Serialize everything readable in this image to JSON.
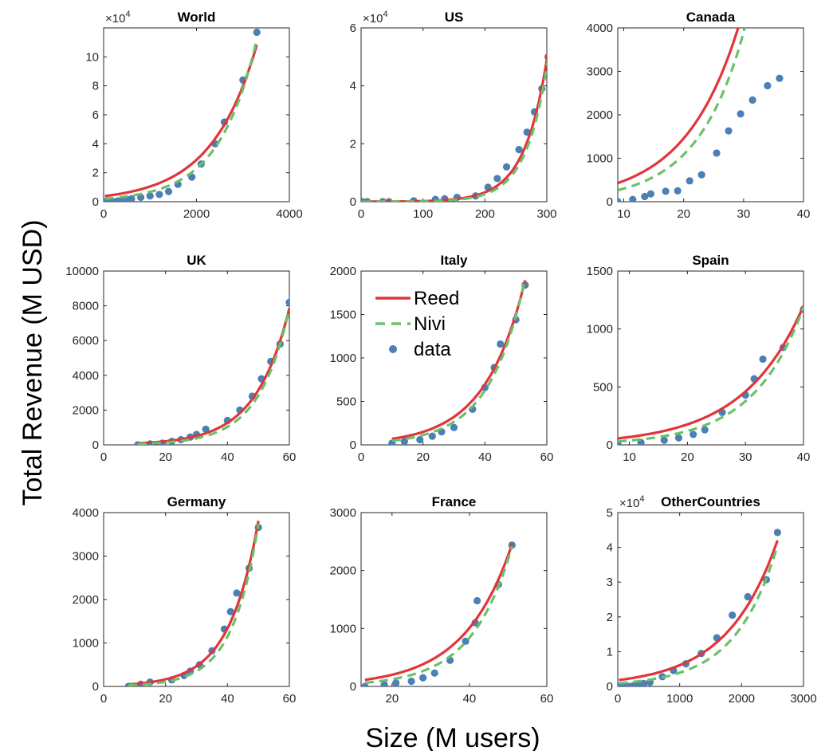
{
  "figure": {
    "ylabel": "Total Revenue (M USD)",
    "xlabel": "Size (M users)"
  },
  "legend": {
    "panel": 4,
    "entries": [
      {
        "label": "Reed",
        "style": "solid-line",
        "color": "#e0353a"
      },
      {
        "label": "Nivi",
        "style": "dashed-line",
        "color": "#6cc06a"
      },
      {
        "label": "data",
        "style": "marker",
        "color": "#4a80b4"
      }
    ]
  },
  "colors": {
    "reed": "#e0353a",
    "nivi": "#6cc06a",
    "data": "#4a80b4"
  },
  "chart_data": [
    {
      "type": "scatter",
      "title": "World",
      "multiplier": "×10^4",
      "xlim": [
        0,
        4000
      ],
      "ylim": [
        0,
        120000
      ],
      "xticks": [
        0,
        2000,
        4000
      ],
      "xtick_labels": [
        "0",
        "2000",
        "4000"
      ],
      "yticks": [
        0,
        20000,
        40000,
        60000,
        80000,
        100000
      ],
      "ytick_labels": [
        "0",
        "2",
        "4",
        "6",
        "8",
        "10"
      ],
      "data_x": [
        30,
        100,
        200,
        300,
        400,
        500,
        600,
        800,
        1000,
        1200,
        1400,
        1600,
        1900,
        2100,
        2400,
        2600,
        3000,
        3300
      ],
      "data_y": [
        0,
        0,
        0,
        500,
        1000,
        1500,
        2000,
        3000,
        4000,
        5000,
        7000,
        12000,
        17000,
        26000,
        40000,
        55000,
        84000,
        117000
      ],
      "reed": {
        "a": 3800,
        "b": 0.001015
      },
      "nivi": {
        "a": 2000,
        "b": 0.00122
      }
    },
    {
      "type": "scatter",
      "title": "US",
      "multiplier": "×10^4",
      "xlim": [
        0,
        300
      ],
      "ylim": [
        0,
        60000
      ],
      "xticks": [
        0,
        100,
        200,
        300
      ],
      "xtick_labels": [
        "0",
        "100",
        "200",
        "300"
      ],
      "yticks": [
        0,
        20000,
        40000,
        60000
      ],
      "ytick_labels": [
        "0",
        "2",
        "4",
        "6"
      ],
      "data_x": [
        2,
        10,
        35,
        45,
        85,
        120,
        135,
        155,
        185,
        205,
        220,
        235,
        255,
        268,
        280,
        292,
        302
      ],
      "data_y": [
        0,
        0,
        0,
        0,
        300,
        800,
        1000,
        1500,
        2000,
        5000,
        8000,
        12000,
        18000,
        24000,
        31000,
        39000,
        50000
      ],
      "reed": {
        "a": 14,
        "b": 0.0272
      },
      "nivi": {
        "a": 8,
        "b": 0.0289
      }
    },
    {
      "type": "scatter",
      "title": "Canada",
      "xlim": [
        9,
        40
      ],
      "ylim": [
        0,
        4000
      ],
      "xticks": [
        10,
        20,
        30,
        40
      ],
      "xtick_labels": [
        "10",
        "20",
        "30",
        "40"
      ],
      "yticks": [
        0,
        1000,
        2000,
        3000,
        4000
      ],
      "ytick_labels": [
        "0",
        "1000",
        "2000",
        "3000",
        "4000"
      ],
      "data_x": [
        9,
        11.5,
        13.5,
        14.5,
        17,
        19,
        21,
        23,
        25.5,
        27.5,
        29.5,
        31.5,
        34,
        36
      ],
      "data_y": [
        0,
        50,
        120,
        180,
        240,
        250,
        480,
        620,
        1120,
        1630,
        2020,
        2340,
        2670,
        2840
      ],
      "reed": {
        "a": 158,
        "b": 0.1111
      },
      "nivi": {
        "a": 84,
        "b": 0.1279
      }
    },
    {
      "type": "scatter",
      "title": "UK",
      "xlim": [
        0,
        60
      ],
      "ylim": [
        0,
        10000
      ],
      "xticks": [
        0,
        20,
        40,
        60
      ],
      "xtick_labels": [
        "0",
        "20",
        "40",
        "60"
      ],
      "yticks": [
        0,
        2000,
        4000,
        6000,
        8000,
        10000
      ],
      "ytick_labels": [
        "0",
        "2000",
        "4000",
        "6000",
        "8000",
        "10000"
      ],
      "data_x": [
        11,
        15,
        19,
        22,
        25,
        28,
        30,
        33,
        40,
        44,
        48,
        51,
        54,
        57,
        60
      ],
      "data_y": [
        0,
        50,
        100,
        200,
        300,
        450,
        600,
        900,
        1400,
        2000,
        2800,
        3800,
        4800,
        5800,
        8200
      ],
      "reed": {
        "a": 33,
        "b": 0.0912
      },
      "nivi": {
        "a": 18,
        "b": 0.1013
      }
    },
    {
      "type": "scatter",
      "title": "Italy",
      "xlim": [
        0,
        60
      ],
      "ylim": [
        0,
        2000
      ],
      "xticks": [
        0,
        20,
        40,
        60
      ],
      "xtick_labels": [
        "0",
        "20",
        "40",
        "60"
      ],
      "yticks": [
        0,
        500,
        1000,
        1500,
        2000
      ],
      "ytick_labels": [
        "0",
        "500",
        "1000",
        "1500",
        "2000"
      ],
      "data_x": [
        10,
        14,
        19,
        23,
        26,
        30,
        36,
        40,
        43,
        45,
        50,
        53
      ],
      "data_y": [
        20,
        40,
        60,
        100,
        150,
        200,
        410,
        660,
        890,
        1160,
        1440,
        1840
      ],
      "reed": {
        "a": 32,
        "b": 0.077
      },
      "nivi": {
        "a": 20,
        "b": 0.0861
      }
    },
    {
      "type": "scatter",
      "title": "Spain",
      "xlim": [
        8,
        40
      ],
      "ylim": [
        0,
        1500
      ],
      "xticks": [
        10,
        20,
        30,
        40
      ],
      "xtick_labels": [
        "10",
        "20",
        "30",
        "40"
      ],
      "yticks": [
        0,
        500,
        1000,
        1500
      ],
      "ytick_labels": [
        "0",
        "500",
        "1000",
        "1500"
      ],
      "data_x": [
        8,
        12,
        16,
        18.5,
        21,
        23,
        26,
        30,
        31.5,
        33,
        36.5,
        40
      ],
      "data_y": [
        10,
        20,
        40,
        60,
        90,
        130,
        280,
        430,
        570,
        740,
        840,
        1170
      ],
      "reed": {
        "a": 26,
        "b": 0.0958
      },
      "nivi": {
        "a": 12,
        "b": 0.1149
      }
    },
    {
      "type": "scatter",
      "title": "Germany",
      "xlim": [
        0,
        60
      ],
      "ylim": [
        0,
        4000
      ],
      "xticks": [
        0,
        20,
        40,
        60
      ],
      "xtick_labels": [
        "0",
        "20",
        "40",
        "60"
      ],
      "yticks": [
        0,
        1000,
        2000,
        3000,
        4000
      ],
      "ytick_labels": [
        "0",
        "1000",
        "2000",
        "3000",
        "4000"
      ],
      "data_x": [
        8,
        12,
        15,
        22,
        26,
        28,
        31,
        35,
        39,
        41,
        43,
        47,
        50
      ],
      "data_y": [
        0,
        50,
        100,
        150,
        250,
        350,
        500,
        820,
        1320,
        1720,
        2150,
        2720,
        3660
      ],
      "reed": {
        "a": 20,
        "b": 0.105
      },
      "nivi": {
        "a": 10,
        "b": 0.1185
      }
    },
    {
      "type": "scatter",
      "title": "France",
      "xlim": [
        12,
        60
      ],
      "ylim": [
        0,
        3000
      ],
      "xticks": [
        20,
        40,
        60
      ],
      "xtick_labels": [
        "20",
        "40",
        "60"
      ],
      "yticks": [
        0,
        1000,
        2000,
        3000
      ],
      "ytick_labels": [
        "0",
        "1000",
        "2000",
        "3000"
      ],
      "data_x": [
        13,
        18,
        21,
        25,
        28,
        31,
        35,
        39,
        41.5,
        42,
        47.5,
        51
      ],
      "data_y": [
        0,
        30,
        60,
        90,
        150,
        230,
        450,
        780,
        1100,
        1480,
        1760,
        2440
      ],
      "reed": {
        "a": 40,
        "b": 0.0807
      },
      "nivi": {
        "a": 18,
        "b": 0.0961
      }
    },
    {
      "type": "scatter",
      "title": "OtherCountries",
      "multiplier": "×10^4",
      "xlim": [
        0,
        3000
      ],
      "ylim": [
        0,
        50000
      ],
      "xticks": [
        0,
        1000,
        2000,
        3000
      ],
      "xtick_labels": [
        "0",
        "1000",
        "2000",
        "3000"
      ],
      "yticks": [
        0,
        10000,
        20000,
        30000,
        40000,
        50000
      ],
      "ytick_labels": [
        "0",
        "1",
        "2",
        "3",
        "4",
        "5"
      ],
      "data_x": [
        20,
        100,
        180,
        250,
        330,
        420,
        520,
        720,
        900,
        1100,
        1350,
        1600,
        1850,
        2100,
        2400,
        2580
      ],
      "data_y": [
        0,
        0,
        0,
        200,
        500,
        800,
        1200,
        2800,
        4600,
        6500,
        9500,
        14000,
        20500,
        25800,
        30700,
        44300
      ],
      "reed": {
        "a": 1800,
        "b": 0.001221
      },
      "nivi": {
        "a": 900,
        "b": 0.001476
      }
    }
  ]
}
